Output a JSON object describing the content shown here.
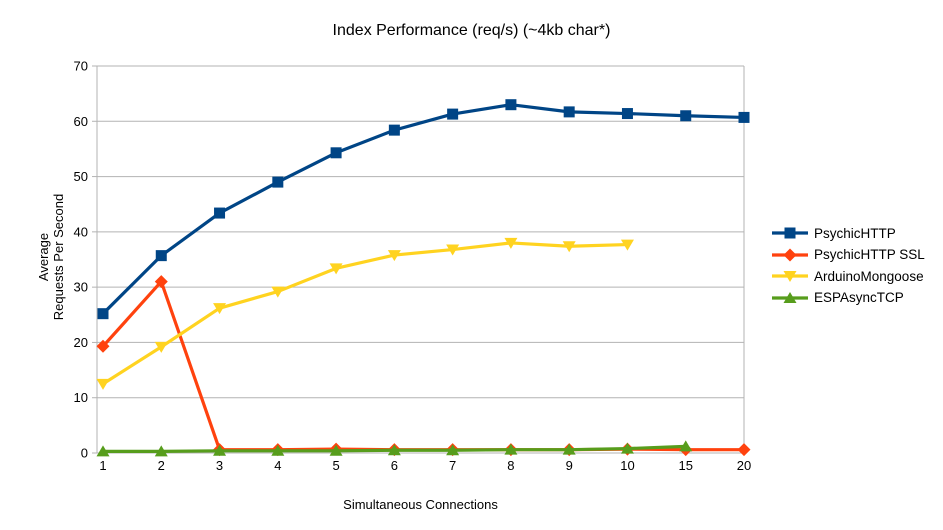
{
  "chart_data": {
    "type": "line",
    "title": "Index Performance (req/s) (~4kb char*)",
    "xlabel": "Simultaneous Connections",
    "ylabel_lines": [
      "Average",
      "Requests Per Second"
    ],
    "ylim": [
      0,
      70
    ],
    "y_ticks": [
      0,
      10,
      20,
      30,
      40,
      50,
      60,
      70
    ],
    "grid": "horizontal",
    "legend_position": "right",
    "categories": [
      "1",
      "2",
      "3",
      "4",
      "5",
      "6",
      "7",
      "8",
      "9",
      "10",
      "15",
      "20"
    ],
    "series": [
      {
        "name": "PsychicHTTP",
        "color": "#004586",
        "marker": "square",
        "values": [
          25.2,
          35.7,
          43.4,
          49.0,
          54.3,
          58.4,
          61.3,
          63.0,
          61.7,
          61.4,
          61.0,
          60.7
        ]
      },
      {
        "name": "PsychicHTTP SSL",
        "color": "#FF420E",
        "marker": "diamond",
        "values": [
          19.3,
          31.0,
          0.6,
          0.6,
          0.7,
          0.6,
          0.6,
          0.6,
          0.6,
          0.7,
          0.6,
          0.6
        ]
      },
      {
        "name": "ArduinoMongoose",
        "color": "#FFD320",
        "marker": "triangle-down",
        "values": [
          12.5,
          19.2,
          26.2,
          29.2,
          33.4,
          35.8,
          36.8,
          38.0,
          37.4,
          37.7,
          null,
          null
        ]
      },
      {
        "name": "ESPAsyncTCP",
        "color": "#579D1C",
        "marker": "triangle-up",
        "values": [
          0.3,
          0.3,
          0.4,
          0.4,
          0.4,
          0.5,
          0.5,
          0.6,
          0.6,
          0.8,
          1.2,
          null
        ]
      }
    ]
  },
  "styles": {
    "grid_color": "#b3b3b3",
    "text_color": "#000000",
    "background": "#ffffff"
  }
}
